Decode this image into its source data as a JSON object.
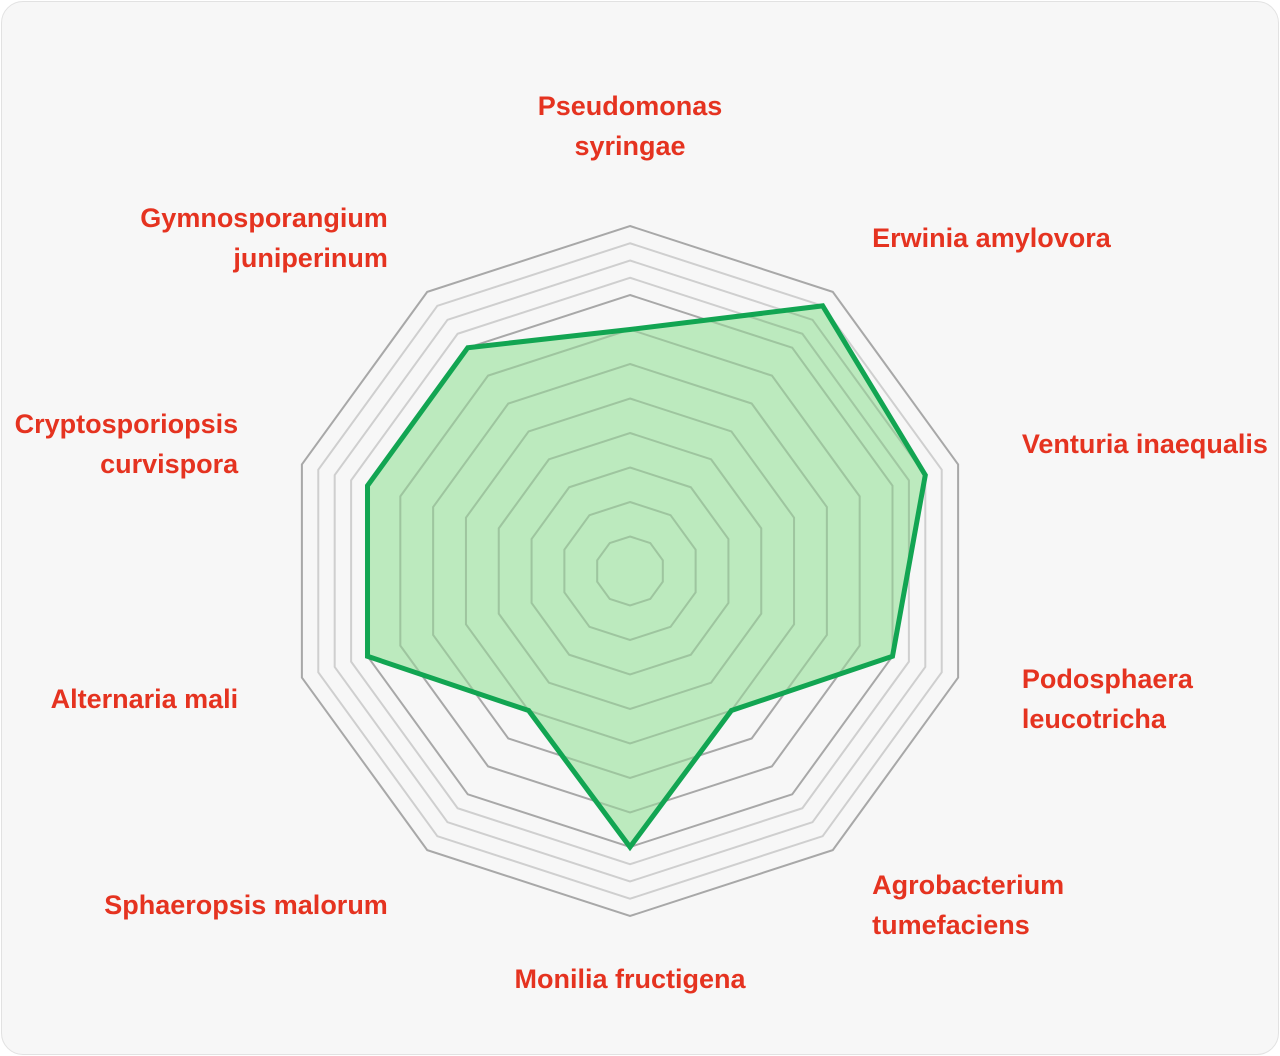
{
  "chart_data": {
    "type": "radar",
    "title": "",
    "axes": [
      "Pseudomonas syringae",
      "Erwinia amylovora",
      "Venturia inaequalis",
      "Podosphaera leucotricha",
      "Agrobacterium tumefaciens",
      "Monilia fructigena",
      "Sphaeropsis malorum",
      "Alternaria mali",
      "Cryptosporiopsis curvispora",
      "Gymnosporangium juniperinum"
    ],
    "axis_label_lines": [
      [
        "Pseudomonas",
        "syringae"
      ],
      [
        "Erwinia amylovora"
      ],
      [
        "Venturia inaequalis"
      ],
      [
        "Podosphaera",
        "leucotricha"
      ],
      [
        "Agrobacterium",
        "tumefaciens"
      ],
      [
        "Monilia fructigena"
      ],
      [
        "Sphaeropsis malorum"
      ],
      [
        "Alternaria mali"
      ],
      [
        "Cryptosporiopsis",
        "curvispora"
      ],
      [
        "Gymnosporangium",
        "juniperinum"
      ]
    ],
    "rmax": 10,
    "grid_levels": [
      1,
      2,
      3,
      4,
      5,
      6,
      7,
      8,
      8.5,
      9,
      9.5,
      10
    ],
    "grid": true,
    "legend": false,
    "series": [
      {
        "values": [
          7,
          9.5,
          9,
          8,
          5,
          8,
          5,
          8,
          8,
          8
        ],
        "color": "#12a552",
        "fill": "#b2e8b4"
      }
    ],
    "label_color": "#e53320",
    "grid_color": "#a8a8a8"
  }
}
